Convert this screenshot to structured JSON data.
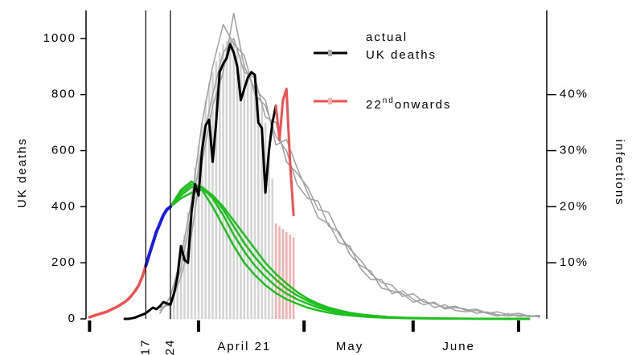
{
  "chart_data": {
    "type": "line",
    "ylabel": "UK deaths",
    "y2label": "infections",
    "xlim": [
      -1,
      130
    ],
    "ylim": [
      0,
      1100
    ],
    "y2lim": [
      0,
      55
    ],
    "xticks": [
      0,
      31,
      61,
      92,
      122
    ],
    "yticks": [
      0,
      200,
      400,
      600,
      800,
      1000
    ],
    "y2ticks": [
      {
        "value": 10,
        "label": "10%"
      },
      {
        "value": 20,
        "label": "20%"
      },
      {
        "value": 30,
        "label": "30%"
      },
      {
        "value": 40,
        "label": "40%"
      }
    ],
    "x_labels": [
      {
        "value": 16,
        "label": "17",
        "rotated": true
      },
      {
        "value": 23,
        "label": "24",
        "rotated": true
      },
      {
        "value": 44,
        "label": "April 21"
      },
      {
        "value": 74,
        "label": "May"
      },
      {
        "value": 105,
        "label": "June"
      }
    ],
    "vlines": [
      16,
      23
    ],
    "legend": [
      {
        "label": "actual\nUK deaths",
        "color": "#000000",
        "marker_color": "#aaaaaa"
      },
      {
        "label": "22",
        "superscript": "nd",
        "label_end": "onwards",
        "color": "#f05050",
        "marker_color": "#f4b0b0"
      }
    ],
    "series": [
      {
        "kind": "bar",
        "color": "#d4d4d4",
        "x": [
          23,
          24,
          25,
          26,
          27,
          28,
          29,
          30,
          31,
          32,
          33,
          34,
          35,
          36,
          37,
          38,
          39,
          40,
          41,
          42,
          43,
          44,
          45,
          46,
          47,
          48,
          49,
          50,
          51,
          52
        ],
        "values": [
          60,
          100,
          150,
          220,
          300,
          380,
          460,
          540,
          620,
          700,
          780,
          840,
          880,
          920,
          950,
          980,
          990,
          1000,
          990,
          970,
          940,
          910,
          880,
          850,
          820,
          790,
          760,
          700,
          600,
          500
        ]
      },
      {
        "kind": "bar",
        "color": "#f4b0b0",
        "x": [
          53,
          54,
          55,
          56,
          57,
          58
        ],
        "values": [
          340,
          330,
          320,
          310,
          300,
          290
        ]
      },
      {
        "kind": "line",
        "color": "#a0a0a0",
        "width": 1.5,
        "x": [
          20,
          23,
          26,
          29,
          32,
          35,
          38,
          41,
          44,
          47,
          50,
          53,
          56,
          59,
          62,
          65,
          68,
          71,
          74,
          77,
          80,
          83,
          86,
          89,
          92,
          95,
          98,
          101,
          104,
          107,
          110,
          113,
          116,
          119,
          122,
          125,
          128
        ],
        "values": [
          30,
          60,
          180,
          380,
          620,
          800,
          950,
          1000,
          880,
          860,
          720,
          700,
          560,
          520,
          470,
          390,
          380,
          300,
          250,
          210,
          160,
          130,
          120,
          80,
          90,
          60,
          55,
          40,
          45,
          30,
          35,
          20,
          25,
          15,
          20,
          10,
          12
        ]
      },
      {
        "kind": "line",
        "color": "#a0a0a0",
        "width": 1.5,
        "x": [
          20,
          23,
          26,
          29,
          32,
          35,
          38,
          41,
          44,
          47,
          50,
          53,
          56,
          59,
          62,
          65,
          68,
          71,
          74,
          77,
          80,
          83,
          86,
          89,
          92,
          95,
          98,
          101,
          104,
          107,
          110,
          113,
          116,
          119,
          122,
          125,
          128
        ],
        "values": [
          20,
          80,
          220,
          420,
          700,
          900,
          1050,
          980,
          940,
          800,
          760,
          650,
          600,
          480,
          430,
          420,
          330,
          310,
          230,
          190,
          170,
          110,
          100,
          90,
          60,
          70,
          40,
          50,
          30,
          25,
          30,
          20,
          10,
          18,
          8,
          12,
          6
        ]
      },
      {
        "kind": "line",
        "color": "#a0a0a0",
        "width": 1.5,
        "x": [
          20,
          23,
          26,
          29,
          32,
          35,
          38,
          41,
          44,
          47,
          50,
          53,
          56,
          59,
          62,
          65,
          68,
          71,
          74,
          77,
          80,
          83,
          86,
          89,
          92,
          95,
          98,
          101,
          104,
          107,
          110,
          113,
          116,
          119,
          122,
          125,
          128
        ],
        "values": [
          40,
          50,
          150,
          300,
          560,
          760,
          880,
          1090,
          900,
          820,
          780,
          620,
          640,
          540,
          450,
          360,
          340,
          270,
          260,
          180,
          140,
          140,
          90,
          100,
          70,
          50,
          60,
          35,
          40,
          35,
          20,
          25,
          15,
          10,
          14,
          8,
          10
        ]
      },
      {
        "kind": "line",
        "axis": "y2",
        "color": "#1fbf1f",
        "width": 2.5,
        "x": [
          23,
          26,
          29,
          32,
          35,
          38,
          41,
          44,
          47,
          50,
          53,
          56,
          59,
          62,
          65,
          68,
          71,
          74,
          77,
          80,
          85,
          90,
          100,
          110,
          125
        ],
        "values": [
          20,
          22.5,
          24,
          23.5,
          21.5,
          18.5,
          15,
          12,
          9.5,
          7.5,
          5.8,
          4.5,
          3.5,
          2.7,
          2,
          1.5,
          1.1,
          0.8,
          0.6,
          0.4,
          0.25,
          0.15,
          0.06,
          0.02,
          0
        ]
      },
      {
        "kind": "line",
        "axis": "y2",
        "color": "#1fbf1f",
        "width": 2.5,
        "x": [
          23,
          26,
          29,
          32,
          35,
          38,
          41,
          44,
          47,
          50,
          53,
          56,
          59,
          62,
          65,
          68,
          71,
          74,
          77,
          80,
          85,
          90,
          100,
          110,
          125
        ],
        "values": [
          20,
          21.5,
          22.5,
          23,
          22,
          20,
          17.5,
          15,
          12.5,
          10,
          8,
          6.3,
          4.8,
          3.6,
          2.7,
          2,
          1.5,
          1.1,
          0.8,
          0.6,
          0.35,
          0.2,
          0.08,
          0.03,
          0
        ]
      },
      {
        "kind": "line",
        "axis": "y2",
        "color": "#1fbf1f",
        "width": 2.5,
        "x": [
          23,
          26,
          29,
          32,
          35,
          38,
          41,
          44,
          47,
          50,
          53,
          56,
          59,
          62,
          65,
          68,
          71,
          74,
          77,
          80,
          85,
          90,
          100,
          110,
          125
        ],
        "values": [
          20,
          23,
          24.5,
          23,
          20,
          16.5,
          13,
          10,
          7.8,
          6,
          4.6,
          3.5,
          2.7,
          2,
          1.5,
          1.1,
          0.8,
          0.6,
          0.45,
          0.3,
          0.18,
          0.1,
          0.04,
          0.01,
          0
        ]
      },
      {
        "kind": "line",
        "axis": "y2",
        "color": "#1fbf1f",
        "width": 2.5,
        "x": [
          23,
          26,
          29,
          32,
          35,
          38,
          41,
          44,
          47,
          50,
          53,
          56,
          59,
          62,
          65,
          68,
          71,
          74,
          77,
          80,
          85,
          90,
          100,
          110,
          125
        ],
        "values": [
          20,
          22,
          23.5,
          23.5,
          22,
          19.5,
          16.5,
          13.5,
          11,
          8.8,
          7,
          5.4,
          4.2,
          3.2,
          2.4,
          1.8,
          1.3,
          1,
          0.7,
          0.5,
          0.3,
          0.17,
          0.07,
          0.02,
          0
        ]
      },
      {
        "kind": "line",
        "axis": "y2",
        "color": "#f05050",
        "width": 3.5,
        "x": [
          0,
          1,
          2,
          3,
          4,
          5,
          6,
          7,
          8,
          9,
          10,
          11,
          12,
          13,
          14,
          15,
          16
        ],
        "values": [
          0.3,
          0.5,
          0.7,
          0.9,
          1.1,
          1.3,
          1.6,
          1.9,
          2.2,
          2.6,
          3.0,
          3.5,
          4.2,
          5.0,
          6.0,
          7.5,
          9.5
        ]
      },
      {
        "kind": "line",
        "axis": "y2",
        "color": "#1a1aee",
        "width": 4,
        "x": [
          16,
          17,
          18,
          19,
          20,
          21,
          22,
          23
        ],
        "values": [
          9.5,
          11.5,
          13.5,
          15.5,
          17,
          18.5,
          19.5,
          20
        ]
      },
      {
        "kind": "line",
        "color": "#000000",
        "width": 3,
        "x": [
          10,
          11,
          12,
          13,
          14,
          15,
          16,
          17,
          18,
          19,
          20,
          21,
          22,
          23,
          24,
          25,
          26,
          27,
          28,
          29,
          30,
          31,
          32,
          33,
          34,
          35,
          36,
          37,
          38,
          39,
          40,
          41,
          42,
          43,
          44,
          45,
          46,
          47,
          48,
          49,
          50,
          51,
          52,
          53
        ],
        "values": [
          0,
          0,
          2,
          5,
          10,
          15,
          20,
          30,
          40,
          35,
          45,
          60,
          55,
          50,
          90,
          150,
          260,
          210,
          200,
          380,
          480,
          440,
          600,
          690,
          710,
          560,
          700,
          880,
          910,
          930,
          980,
          950,
          900,
          780,
          820,
          860,
          880,
          870,
          700,
          680,
          450,
          600,
          700,
          760
        ]
      },
      {
        "kind": "line",
        "color": "#f05050",
        "width": 3,
        "x": [
          53,
          54,
          55,
          56,
          57,
          58
        ],
        "values": [
          760,
          640,
          780,
          820,
          560,
          370
        ]
      }
    ]
  }
}
